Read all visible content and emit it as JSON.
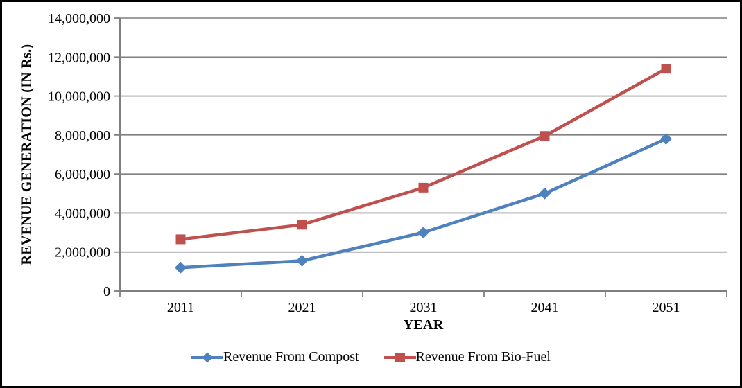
{
  "chart_data": {
    "type": "line",
    "categories": [
      "2011",
      "2021",
      "2031",
      "2041",
      "2051"
    ],
    "series": [
      {
        "name": "Revenue From Compost",
        "color": "#4F81BD",
        "marker": "diamond",
        "values": [
          1200000,
          1550000,
          3000000,
          5000000,
          7800000
        ]
      },
      {
        "name": "Revenue From Bio-Fuel",
        "color": "#C0504D",
        "marker": "square",
        "values": [
          2650000,
          3400000,
          5300000,
          7950000,
          11400000
        ]
      }
    ],
    "xlabel": "YEAR",
    "ylabel": "REVENUE GENERATION (IN Rs.)",
    "ylim": [
      0,
      14000000
    ],
    "y_tick_step": 2000000,
    "y_tick_labels": [
      "0",
      "2,000,000",
      "4,000,000",
      "6,000,000",
      "8,000,000",
      "10,000,000",
      "12,000,000",
      "14,000,000"
    ],
    "grid": true,
    "gridline_color": "#7F7F7F",
    "axis_color": "#7F7F7F",
    "legend_position": "bottom"
  }
}
